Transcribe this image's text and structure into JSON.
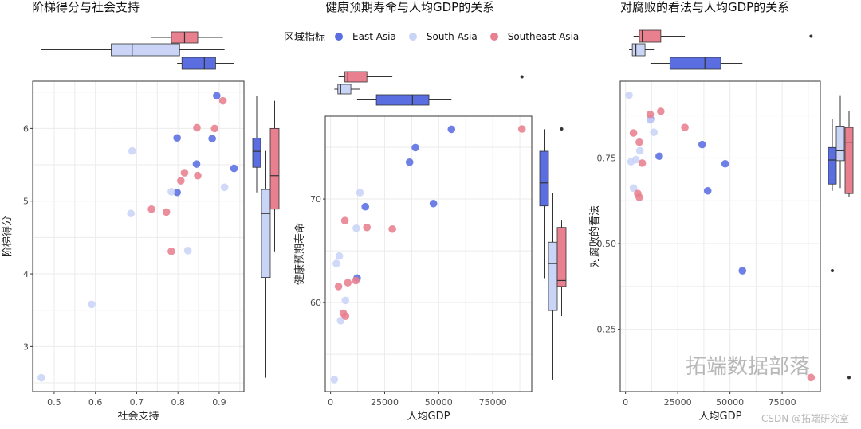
{
  "legend": {
    "title": "区域指标",
    "entries": [
      {
        "name": "East Asia",
        "color": "#5a6ee2"
      },
      {
        "name": "South Asia",
        "color": "#c9d4f7"
      },
      {
        "name": "Southeast Asia",
        "color": "#e9808f"
      }
    ]
  },
  "watermark": {
    "main": "拓端数据部落",
    "sub": "CSDN @拓端研究室"
  },
  "chart_data": [
    {
      "type": "scatter",
      "title": "阶梯得分与社会支持",
      "xlabel": "社会支持",
      "ylabel": "阶梯得分",
      "xlim": [
        0.448,
        0.96
      ],
      "ylim": [
        2.38,
        6.65
      ],
      "x_ticks": [
        "0.5",
        "0.6",
        "0.7",
        "0.8",
        "0.9"
      ],
      "x_tick_values": [
        0.5,
        0.6,
        0.7,
        0.8,
        0.9
      ],
      "y_ticks": [
        "3",
        "4",
        "5",
        "6"
      ],
      "y_tick_values": [
        3,
        4,
        5,
        6
      ],
      "grid": true,
      "marginal": "boxplot",
      "series": [
        {
          "name": "East Asia",
          "points": [
            [
              0.894,
              6.45
            ],
            [
              0.798,
              5.87
            ],
            [
              0.883,
              5.86
            ],
            [
              0.845,
              5.51
            ],
            [
              0.936,
              5.45
            ],
            [
              0.798,
              5.12
            ]
          ]
        },
        {
          "name": "South Asia",
          "points": [
            [
              0.689,
              5.69
            ],
            [
              0.784,
              5.13
            ],
            [
              0.686,
              4.83
            ],
            [
              0.913,
              5.19
            ],
            [
              0.824,
              4.32
            ],
            [
              0.591,
              3.58
            ],
            [
              0.469,
              2.57
            ]
          ]
        },
        {
          "name": "Southeast Asia",
          "points": [
            [
              0.909,
              6.38
            ],
            [
              0.846,
              6.01
            ],
            [
              0.889,
              6.0
            ],
            [
              0.816,
              5.39
            ],
            [
              0.807,
              5.28
            ],
            [
              0.848,
              5.35
            ],
            [
              0.736,
              4.89
            ],
            [
              0.772,
              4.85
            ],
            [
              0.784,
              4.31
            ]
          ]
        }
      ]
    },
    {
      "type": "scatter",
      "title": "健康预期寿命与人均GDP的关系",
      "xlabel": "人均GDP",
      "ylabel": "健康预期寿命",
      "xlim": [
        -2451,
        93015
      ],
      "ylim": [
        51.4,
        78.0
      ],
      "x_ticks": [
        "0",
        "25000",
        "50000",
        "75000"
      ],
      "x_tick_values": [
        0,
        25000,
        50000,
        75000
      ],
      "y_ticks": [
        "60",
        "70"
      ],
      "y_tick_values": [
        60,
        70
      ],
      "grid": true,
      "marginal": "boxplot",
      "series": [
        {
          "name": "East Asia",
          "points": [
            [
              55882,
              76.74
            ],
            [
              39216,
              74.97
            ],
            [
              36520,
              73.56
            ],
            [
              47549,
              69.56
            ],
            [
              16054,
              69.26
            ],
            [
              12255,
              62.36
            ]
          ]
        },
        {
          "name": "South Asia",
          "points": [
            [
              13603,
              70.62
            ],
            [
              11887,
              67.18
            ],
            [
              4044,
              64.49
            ],
            [
              2696,
              63.77
            ],
            [
              6863,
              60.21
            ],
            [
              4657,
              58.26
            ],
            [
              1716,
              52.56
            ]
          ]
        },
        {
          "name": "Southeast Asia",
          "points": [
            [
              88480,
              76.77
            ],
            [
              6618,
              67.92
            ],
            [
              16789,
              67.26
            ],
            [
              28554,
              67.1
            ],
            [
              11642,
              62.13
            ],
            [
              7966,
              61.92
            ],
            [
              3677,
              61.56
            ],
            [
              5882,
              58.97
            ],
            [
              6863,
              58.69
            ]
          ]
        }
      ]
    },
    {
      "type": "scatter",
      "title": "对腐败的看法与人均GDP的关系",
      "xlabel": "人均GDP",
      "ylabel": "对腐败的看法",
      "xlim": [
        -2538,
        93274
      ],
      "ylim": [
        0.068,
        0.974
      ],
      "x_ticks": [
        "0",
        "25000",
        "50000",
        "75000"
      ],
      "x_tick_values": [
        0,
        25000,
        50000,
        75000
      ],
      "y_ticks": [
        "0.25",
        "0.50",
        "0.75"
      ],
      "y_tick_values": [
        0.25,
        0.5,
        0.75
      ],
      "grid": true,
      "marginal": "boxplot",
      "series": [
        {
          "name": "East Asia",
          "points": [
            [
              11929,
              0.863
            ],
            [
              16116,
              0.755
            ],
            [
              36674,
              0.789
            ],
            [
              47714,
              0.733
            ],
            [
              39339,
              0.654
            ],
            [
              55963,
              0.421
            ]
          ]
        },
        {
          "name": "South Asia",
          "points": [
            [
              1650,
              0.933
            ],
            [
              11802,
              0.861
            ],
            [
              13578,
              0.825
            ],
            [
              6853,
              0.771
            ],
            [
              2665,
              0.739
            ],
            [
              4949,
              0.745
            ],
            [
              3807,
              0.662
            ]
          ]
        },
        {
          "name": "Southeast Asia",
          "points": [
            [
              11802,
              0.877
            ],
            [
              16878,
              0.886
            ],
            [
              28425,
              0.839
            ],
            [
              3807,
              0.823
            ],
            [
              6599,
              0.796
            ],
            [
              7995,
              0.735
            ],
            [
              5837,
              0.646
            ],
            [
              6599,
              0.635
            ],
            [
              88830,
              0.109
            ]
          ]
        }
      ]
    }
  ]
}
